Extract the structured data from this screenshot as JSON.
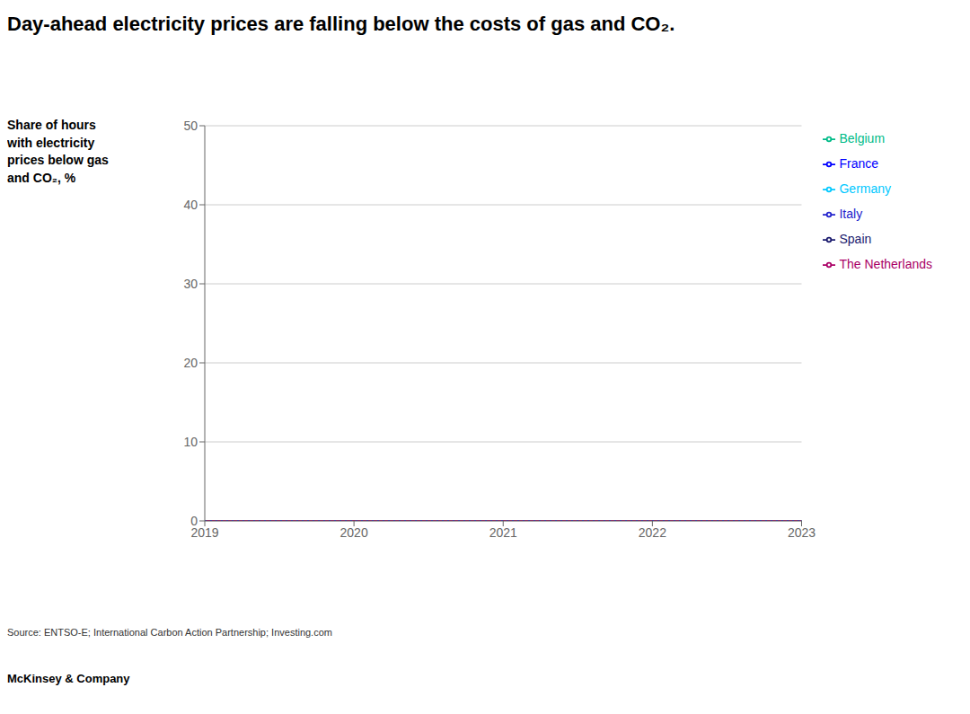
{
  "chart_data": {
    "type": "line",
    "title": "Day-ahead electricity prices are falling below the costs of gas and CO₂.",
    "y_label": "Share of hours\nwith electricity\nprices below gas\nand CO₂, %",
    "source": "Source: ENTSO-E; International Carbon Action Partnership; Investing.com",
    "footer": "McKinsey & Company",
    "x": [
      2019,
      2023
    ],
    "xlim": [
      2019,
      2023
    ],
    "xticks": [
      2019,
      2020,
      2021,
      2022,
      2023
    ],
    "ylim": [
      0,
      50
    ],
    "yticks": [
      0,
      10,
      20,
      30,
      40,
      50
    ],
    "grid": true,
    "legend": "right",
    "series": [
      {
        "name": "Spain",
        "color": "#1a1a6e",
        "line_style": "solid",
        "values": [
          0,
          0
        ]
      },
      {
        "name": "Germany",
        "color": "#00c8ff",
        "line_style": "solid",
        "values": [
          0,
          0
        ]
      },
      {
        "name": "France",
        "color": "#0000ff",
        "line_style": "solid",
        "values": [
          0,
          0
        ]
      },
      {
        "name": "Belgium",
        "color": "#00bb88",
        "line_style": "solid",
        "values": [
          0,
          0
        ]
      },
      {
        "name": "The Netherlands",
        "color": "#aa0066",
        "line_style": "solid",
        "values": [
          0,
          0
        ]
      },
      {
        "name": "Italy",
        "color": "#2222cc",
        "line_style": "dotted",
        "values": [
          0,
          0
        ]
      }
    ]
  }
}
